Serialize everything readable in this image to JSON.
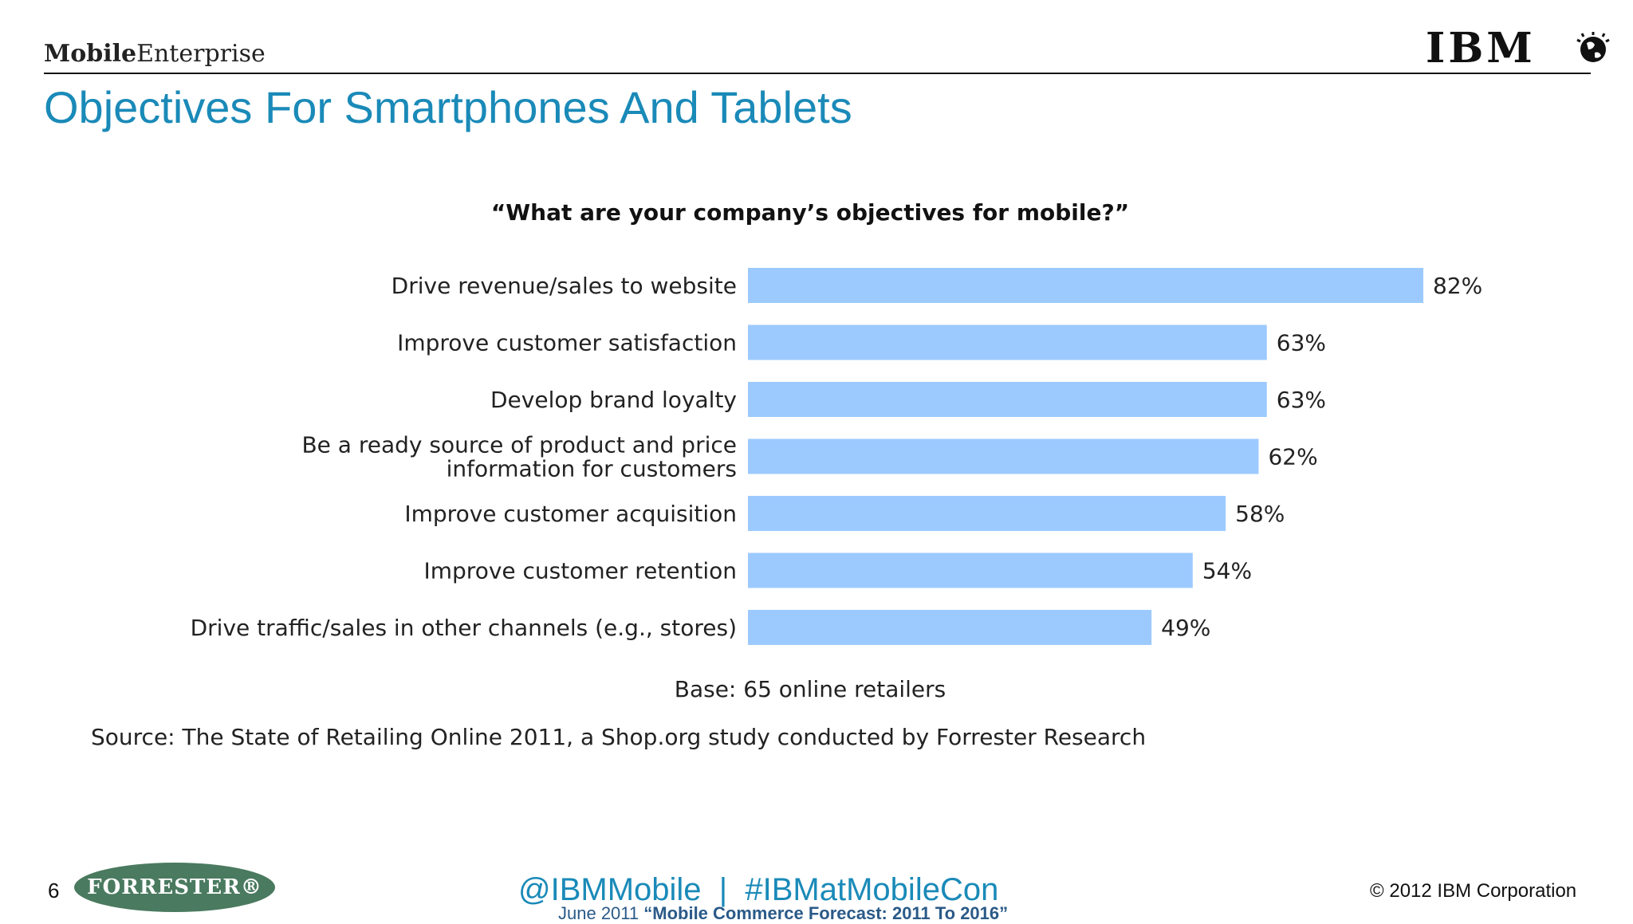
{
  "header": {
    "brand_bold": "Mobile",
    "brand_regular": "Enterprise",
    "logo_text": "IBM"
  },
  "page_title": "Objectives For Smartphones And Tablets",
  "chart_data": {
    "type": "bar",
    "orientation": "horizontal",
    "title": "“What are your company’s objectives for mobile?”",
    "categories": [
      "Drive revenue/sales to website",
      "Improve customer satisfaction",
      "Develop brand loyalty",
      "Be a ready source of product and price information for customers",
      "Improve customer acquisition",
      "Improve customer retention",
      "Drive traffic/sales in other channels (e.g., stores)"
    ],
    "values": [
      82,
      63,
      63,
      62,
      58,
      54,
      49
    ],
    "value_labels": [
      "82%",
      "63%",
      "63%",
      "62%",
      "58%",
      "54%",
      "49%"
    ],
    "unit": "%",
    "bar_color": "#9ccaff",
    "grid": false,
    "legend": "none"
  },
  "base_note": "Base: 65 online retailers",
  "source_note": "Source: The State of Retailing Online 2011, a Shop.org study conducted by Forrester Research",
  "footer": {
    "slide_number": "6",
    "forrester_logo": "FORRESTER®",
    "hashtags": "@IBMMobile  |  #IBMatMobileCon",
    "cite_prefix": "June 2011 ",
    "cite_title": "“Mobile Commerce Forecast: 2011 To 2016”",
    "copyright": "© 2012 IBM Corporation"
  },
  "colors": {
    "title_blue": "#1a8ab8",
    "bar_blue": "#9ccaff",
    "forrester_green": "#4a7a5f"
  }
}
